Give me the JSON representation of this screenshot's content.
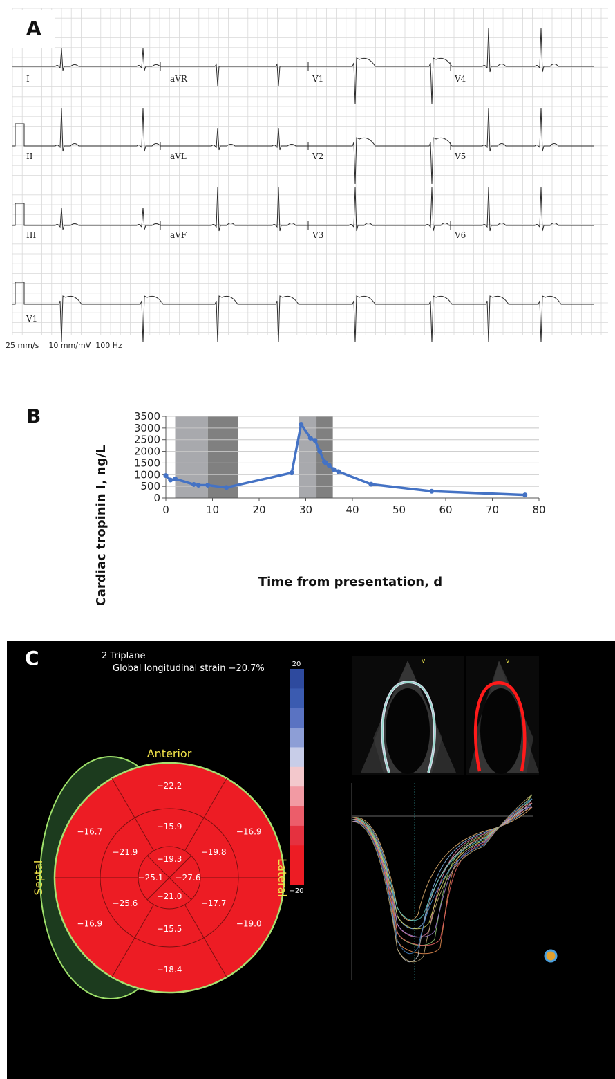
{
  "panels": {
    "a": "A",
    "b": "B",
    "c": "C"
  },
  "ecg": {
    "leads_row1": [
      "I",
      "aVR",
      "V1",
      "V4"
    ],
    "leads_row2": [
      "II",
      "aVL",
      "V2",
      "V5"
    ],
    "leads_row3": [
      "III",
      "aVF",
      "V3",
      "V6"
    ],
    "rhythm_lead": "V1",
    "footer": "25 mm/s    10 mm/mV  100 Hz"
  },
  "chart_data": {
    "type": "line",
    "xlabel": "Time from presentation, d",
    "ylabel": "Cardiac tropinin I, ng/L",
    "xlim": [
      0,
      80
    ],
    "ylim": [
      0,
      3500
    ],
    "x_ticks": [
      0,
      10,
      20,
      30,
      40,
      50,
      60,
      70,
      80
    ],
    "y_ticks": [
      0,
      500,
      1000,
      1500,
      2000,
      2500,
      3000,
      3500
    ],
    "grid": "horizontal",
    "shaded_intervals": [
      {
        "from": 2,
        "to": 9,
        "shade": "light",
        "color": "#a8a9ad"
      },
      {
        "from": 9,
        "to": 15.5,
        "shade": "dark",
        "color": "#808080"
      },
      {
        "from": 28.5,
        "to": 32.3,
        "shade": "light",
        "color": "#a8a9ad"
      },
      {
        "from": 32.3,
        "to": 35.8,
        "shade": "dark",
        "color": "#808080"
      }
    ],
    "series": [
      {
        "color": "#4472c4",
        "x": [
          0,
          1,
          2,
          6,
          7,
          9,
          13,
          27,
          29,
          31,
          32,
          33,
          34,
          34.3,
          35,
          36,
          37,
          44,
          57,
          77
        ],
        "y": [
          960,
          770,
          820,
          580,
          550,
          550,
          450,
          1080,
          3160,
          2570,
          2470,
          2000,
          1550,
          1500,
          1400,
          1220,
          1130,
          590,
          290,
          130
        ]
      }
    ]
  },
  "strain": {
    "title_line1": "2 Triplane",
    "title_line2": "Global longitudinal strain −20.7%",
    "scale_max": "20",
    "scale_min": "−20",
    "label_anterior": "Anterior",
    "label_septal": "Septal",
    "label_lateral": "Lateral",
    "segment_color": "#ed1c24",
    "basal": [
      "−22.2",
      "−16.9",
      "−19.0",
      "−18.4",
      "−16.9",
      "−16.7"
    ],
    "mid": [
      "−15.9",
      "−19.8",
      "−17.7",
      "−15.5",
      "−25.6",
      "−21.9"
    ],
    "apical": [
      "−19.3",
      "−27.6",
      "−21.0",
      "−25.1"
    ]
  }
}
